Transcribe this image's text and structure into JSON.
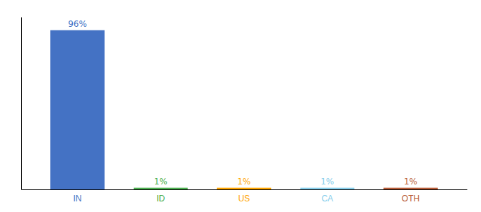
{
  "chart_data": {
    "type": "bar",
    "categories": [
      "IN",
      "ID",
      "US",
      "CA",
      "OTH"
    ],
    "values": [
      96,
      1,
      1,
      1,
      1
    ],
    "value_labels": [
      "96%",
      "1%",
      "1%",
      "1%",
      "1%"
    ],
    "colors": [
      "#4472c4",
      "#4caf50",
      "#ffa500",
      "#87ceeb",
      "#b85c38"
    ],
    "ylim": [
      0,
      104
    ],
    "data_labels": true,
    "tick_labels": "x",
    "grid": false
  }
}
